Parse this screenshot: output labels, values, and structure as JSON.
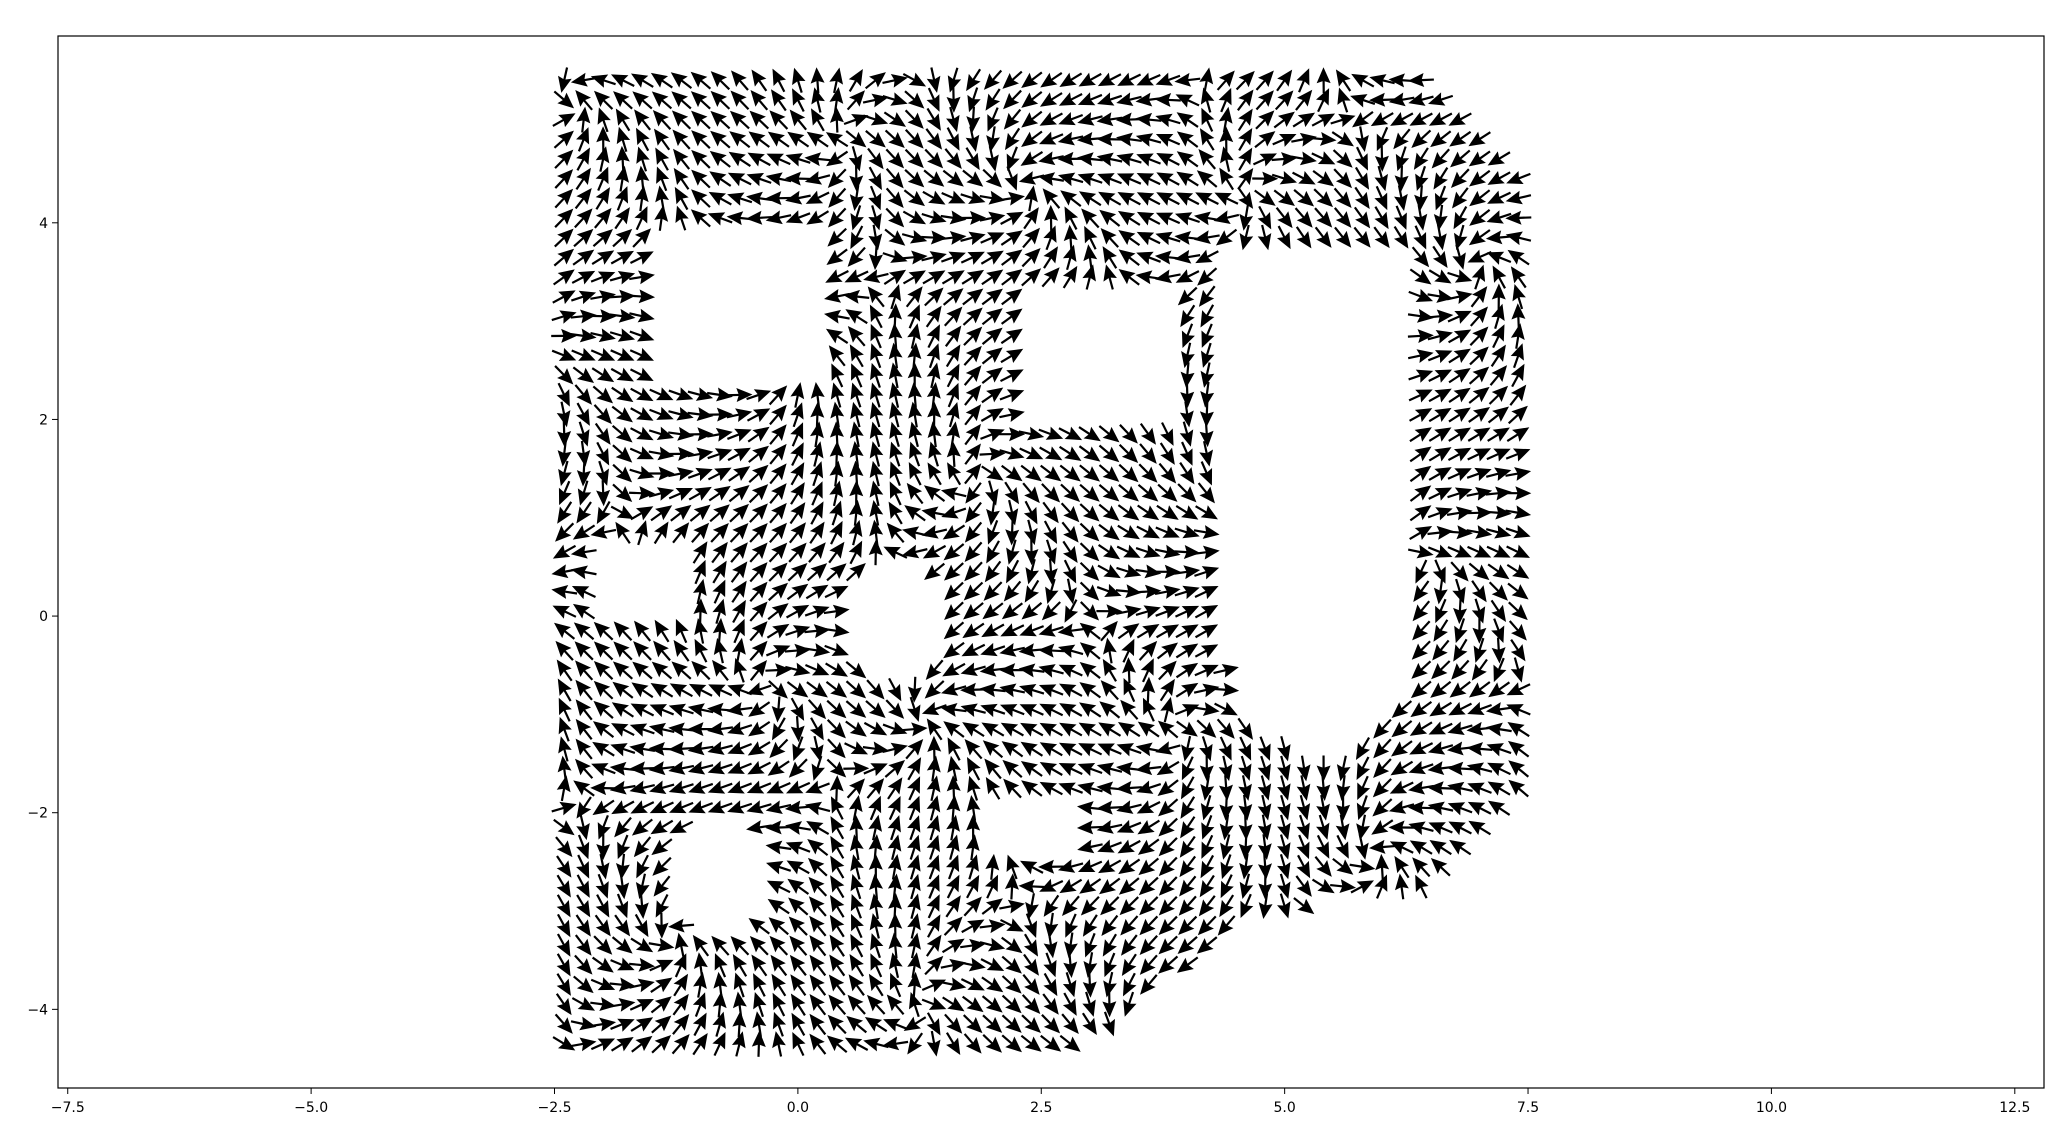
{
  "chart_data": {
    "type": "quiver",
    "title": "",
    "xlabel": "",
    "ylabel": "",
    "xlim": [
      -7.6,
      12.8
    ],
    "ylim": [
      -4.8,
      5.9
    ],
    "x_ticks": [
      -7.5,
      -5.0,
      -2.5,
      0.0,
      2.5,
      5.0,
      7.5,
      10.0,
      12.5
    ],
    "x_tick_labels": [
      "−7.5",
      "−5.0",
      "−2.5",
      "0.0",
      "2.5",
      "5.0",
      "7.5",
      "10.0",
      "12.5"
    ],
    "y_ticks": [
      -4,
      -2,
      0,
      2,
      4
    ],
    "y_tick_labels": [
      "−4",
      "−2",
      "0",
      "2",
      "4"
    ],
    "grid": false,
    "arrow_color": "#000000",
    "field": {
      "x_range": [
        -2.4,
        7.6
      ],
      "y_range": [
        -4.35,
        5.55
      ],
      "step": 0.2,
      "region_boundary": [
        [
          -2.4,
          5.55
        ],
        [
          6.5,
          5.55
        ],
        [
          7.6,
          4.3
        ],
        [
          7.6,
          -1.6
        ],
        [
          6.5,
          -2.8
        ],
        [
          4.8,
          -3.0
        ],
        [
          3.0,
          -4.35
        ],
        [
          -2.4,
          -4.35
        ]
      ],
      "holes": [
        {
          "type": "rect",
          "x": [
            -1.5,
            0.3
          ],
          "y": [
            2.3,
            3.9
          ]
        },
        {
          "type": "rect",
          "x": [
            2.3,
            3.9
          ],
          "y": [
            1.9,
            3.3
          ]
        },
        {
          "type": "rect",
          "x": [
            -2.0,
            -1.1
          ],
          "y": [
            -0.1,
            0.7
          ]
        },
        {
          "type": "rect",
          "x": [
            1.9,
            2.9
          ],
          "y": [
            -2.4,
            -1.8
          ]
        },
        {
          "type": "rect",
          "x": [
            4.4,
            6.3
          ],
          "y": [
            2.3,
            3.8
          ]
        },
        {
          "type": "circle",
          "cx": 1.0,
          "cy": -0.05,
          "r": 0.55
        },
        {
          "type": "circle",
          "cx": -0.8,
          "cy": -2.6,
          "r": 0.6
        },
        {
          "type": "ushape",
          "x": [
            4.4,
            6.3
          ],
          "y": [
            -1.4,
            2.3
          ]
        }
      ],
      "components": {
        "u": "cos(1.6*x + 0.9*y) + 0.6*sin(0.8*y)",
        "v": "sin(1.3*y - 1.1*x) + 0.5*cos(0.7*x)"
      }
    }
  }
}
